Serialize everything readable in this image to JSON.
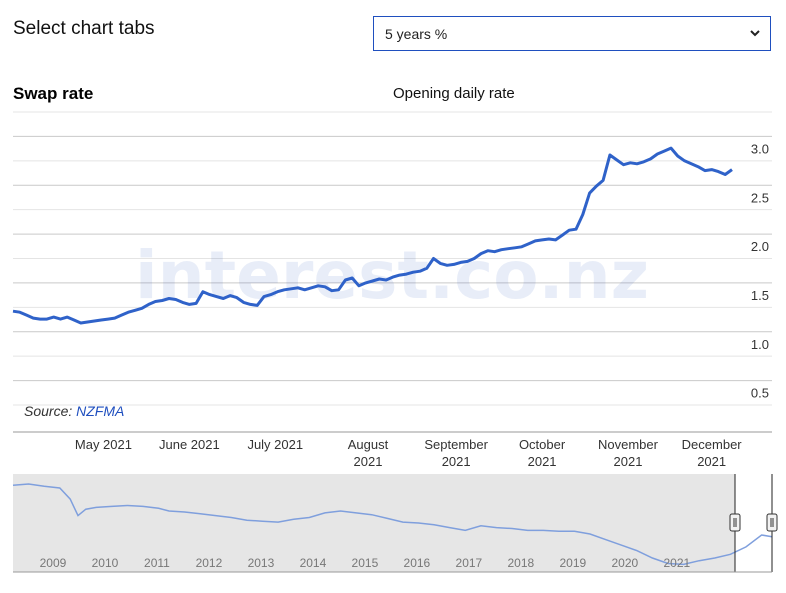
{
  "header": {
    "title": "Select chart tabs",
    "select": {
      "value": "5 years %",
      "icon": "chevron-down-icon"
    }
  },
  "chart": {
    "title": "Swap rate",
    "subtitle": "Opening daily rate",
    "watermark": "interest.co.nz",
    "source_label": "Source:",
    "source_name": "NZFMA"
  },
  "colors": {
    "line": "#2f62c9",
    "nav_line": "#7f9fdd",
    "nav_bg": "#e6e6e6",
    "accent": "#1f4fbf"
  },
  "chart_data": {
    "type": "line",
    "series": [
      {
        "values": [
          [
            0,
            1.21
          ],
          [
            3,
            1.2
          ],
          [
            6,
            1.17
          ],
          [
            9,
            1.14
          ],
          [
            12,
            1.13
          ],
          [
            15,
            1.13
          ],
          [
            18,
            1.15
          ],
          [
            21,
            1.13
          ],
          [
            24,
            1.15
          ],
          [
            27,
            1.12
          ],
          [
            30,
            1.09
          ],
          [
            33,
            1.1
          ],
          [
            36,
            1.11
          ],
          [
            39,
            1.12
          ],
          [
            42,
            1.13
          ],
          [
            45,
            1.14
          ],
          [
            48,
            1.17
          ],
          [
            51,
            1.2
          ],
          [
            54,
            1.22
          ],
          [
            57,
            1.24
          ],
          [
            60,
            1.28
          ],
          [
            63,
            1.31
          ],
          [
            66,
            1.32
          ],
          [
            69,
            1.34
          ],
          [
            72,
            1.33
          ],
          [
            75,
            1.3
          ],
          [
            78,
            1.28
          ],
          [
            81,
            1.29
          ],
          [
            84,
            1.41
          ],
          [
            87,
            1.38
          ],
          [
            90,
            1.36
          ],
          [
            93,
            1.34
          ],
          [
            96,
            1.37
          ],
          [
            99,
            1.35
          ],
          [
            102,
            1.3
          ],
          [
            105,
            1.28
          ],
          [
            108,
            1.27
          ],
          [
            111,
            1.36
          ],
          [
            114,
            1.38
          ],
          [
            117,
            1.41
          ],
          [
            120,
            1.43
          ],
          [
            123,
            1.44
          ],
          [
            126,
            1.45
          ],
          [
            129,
            1.43
          ],
          [
            132,
            1.45
          ],
          [
            135,
            1.47
          ],
          [
            138,
            1.46
          ],
          [
            141,
            1.42
          ],
          [
            144,
            1.43
          ],
          [
            147,
            1.53
          ],
          [
            150,
            1.55
          ],
          [
            153,
            1.47
          ],
          [
            156,
            1.5
          ],
          [
            159,
            1.52
          ],
          [
            162,
            1.54
          ],
          [
            165,
            1.53
          ],
          [
            168,
            1.56
          ],
          [
            171,
            1.58
          ],
          [
            174,
            1.59
          ],
          [
            177,
            1.61
          ],
          [
            180,
            1.62
          ],
          [
            183,
            1.65
          ],
          [
            186,
            1.75
          ],
          [
            189,
            1.7
          ],
          [
            192,
            1.68
          ],
          [
            195,
            1.69
          ],
          [
            198,
            1.71
          ],
          [
            201,
            1.72
          ],
          [
            204,
            1.75
          ],
          [
            207,
            1.8
          ],
          [
            210,
            1.83
          ],
          [
            213,
            1.82
          ],
          [
            216,
            1.84
          ],
          [
            219,
            1.85
          ],
          [
            222,
            1.86
          ],
          [
            225,
            1.87
          ],
          [
            228,
            1.9
          ],
          [
            231,
            1.93
          ],
          [
            234,
            1.94
          ],
          [
            237,
            1.95
          ],
          [
            240,
            1.94
          ],
          [
            243,
            1.99
          ],
          [
            246,
            2.04
          ],
          [
            249,
            2.05
          ],
          [
            252,
            2.2
          ],
          [
            255,
            2.42
          ],
          [
            258,
            2.49
          ],
          [
            261,
            2.55
          ],
          [
            264,
            2.81
          ],
          [
            267,
            2.76
          ],
          [
            270,
            2.71
          ],
          [
            273,
            2.73
          ],
          [
            276,
            2.72
          ],
          [
            279,
            2.74
          ],
          [
            282,
            2.77
          ],
          [
            285,
            2.82
          ],
          [
            288,
            2.85
          ],
          [
            291,
            2.88
          ],
          [
            294,
            2.8
          ],
          [
            297,
            2.75
          ],
          [
            300,
            2.72
          ],
          [
            303,
            2.69
          ],
          [
            306,
            2.65
          ],
          [
            309,
            2.66
          ],
          [
            312,
            2.64
          ],
          [
            315,
            2.61
          ],
          [
            318,
            2.66
          ]
        ]
      }
    ],
    "x_axis": {
      "ticks": [
        {
          "label": "May 2021",
          "pos": 40
        },
        {
          "label": "June 2021",
          "pos": 78
        },
        {
          "label": "July 2021",
          "pos": 116
        },
        {
          "label": "August 2021",
          "pos": 157
        },
        {
          "label": "September 2021",
          "pos": 196
        },
        {
          "label": "October 2021",
          "pos": 234
        },
        {
          "label": "November 2021",
          "pos": 272
        },
        {
          "label": "December 2021",
          "pos": 309
        }
      ]
    },
    "y_axis": {
      "range": [
        0.25,
        3.25
      ],
      "ticks": [
        3.0,
        2.5,
        2.0,
        1.5,
        1.0,
        0.5
      ],
      "tick_labels": [
        "3.0",
        "2.5",
        "2.0",
        "1.5",
        "1.0",
        "0.5"
      ]
    },
    "grid": true,
    "navigator": {
      "years": [
        "2009",
        "2010",
        "2011",
        "2012",
        "2013",
        "2014",
        "2015",
        "2016",
        "2017",
        "2018",
        "2019",
        "2020",
        "2021"
      ],
      "range": [
        2008.0,
        2022.6
      ],
      "values": [
        [
          2008.0,
          4.55
        ],
        [
          2008.3,
          4.62
        ],
        [
          2008.6,
          4.5
        ],
        [
          2008.9,
          4.4
        ],
        [
          2009.1,
          3.8
        ],
        [
          2009.25,
          2.9
        ],
        [
          2009.4,
          3.25
        ],
        [
          2009.6,
          3.35
        ],
        [
          2009.9,
          3.4
        ],
        [
          2010.2,
          3.45
        ],
        [
          2010.5,
          3.4
        ],
        [
          2010.8,
          3.3
        ],
        [
          2011.0,
          3.15
        ],
        [
          2011.3,
          3.1
        ],
        [
          2011.6,
          3.0
        ],
        [
          2011.9,
          2.9
        ],
        [
          2012.2,
          2.8
        ],
        [
          2012.5,
          2.65
        ],
        [
          2012.8,
          2.6
        ],
        [
          2013.1,
          2.55
        ],
        [
          2013.4,
          2.7
        ],
        [
          2013.7,
          2.8
        ],
        [
          2014.0,
          3.05
        ],
        [
          2014.3,
          3.15
        ],
        [
          2014.6,
          3.05
        ],
        [
          2014.9,
          2.95
        ],
        [
          2015.2,
          2.75
        ],
        [
          2015.5,
          2.55
        ],
        [
          2015.8,
          2.5
        ],
        [
          2016.1,
          2.4
        ],
        [
          2016.4,
          2.25
        ],
        [
          2016.7,
          2.1
        ],
        [
          2017.0,
          2.35
        ],
        [
          2017.3,
          2.25
        ],
        [
          2017.6,
          2.2
        ],
        [
          2017.9,
          2.1
        ],
        [
          2018.2,
          2.1
        ],
        [
          2018.5,
          2.05
        ],
        [
          2018.8,
          2.05
        ],
        [
          2019.1,
          1.9
        ],
        [
          2019.4,
          1.6
        ],
        [
          2019.7,
          1.3
        ],
        [
          2020.0,
          1.0
        ],
        [
          2020.3,
          0.6
        ],
        [
          2020.6,
          0.3
        ],
        [
          2020.9,
          0.25
        ],
        [
          2021.2,
          0.45
        ],
        [
          2021.5,
          0.6
        ],
        [
          2021.8,
          0.8
        ],
        [
          2022.1,
          1.2
        ],
        [
          2022.4,
          1.85
        ],
        [
          2022.6,
          1.75
        ]
      ],
      "window": [
        2022.13,
        2022.8
      ]
    }
  }
}
